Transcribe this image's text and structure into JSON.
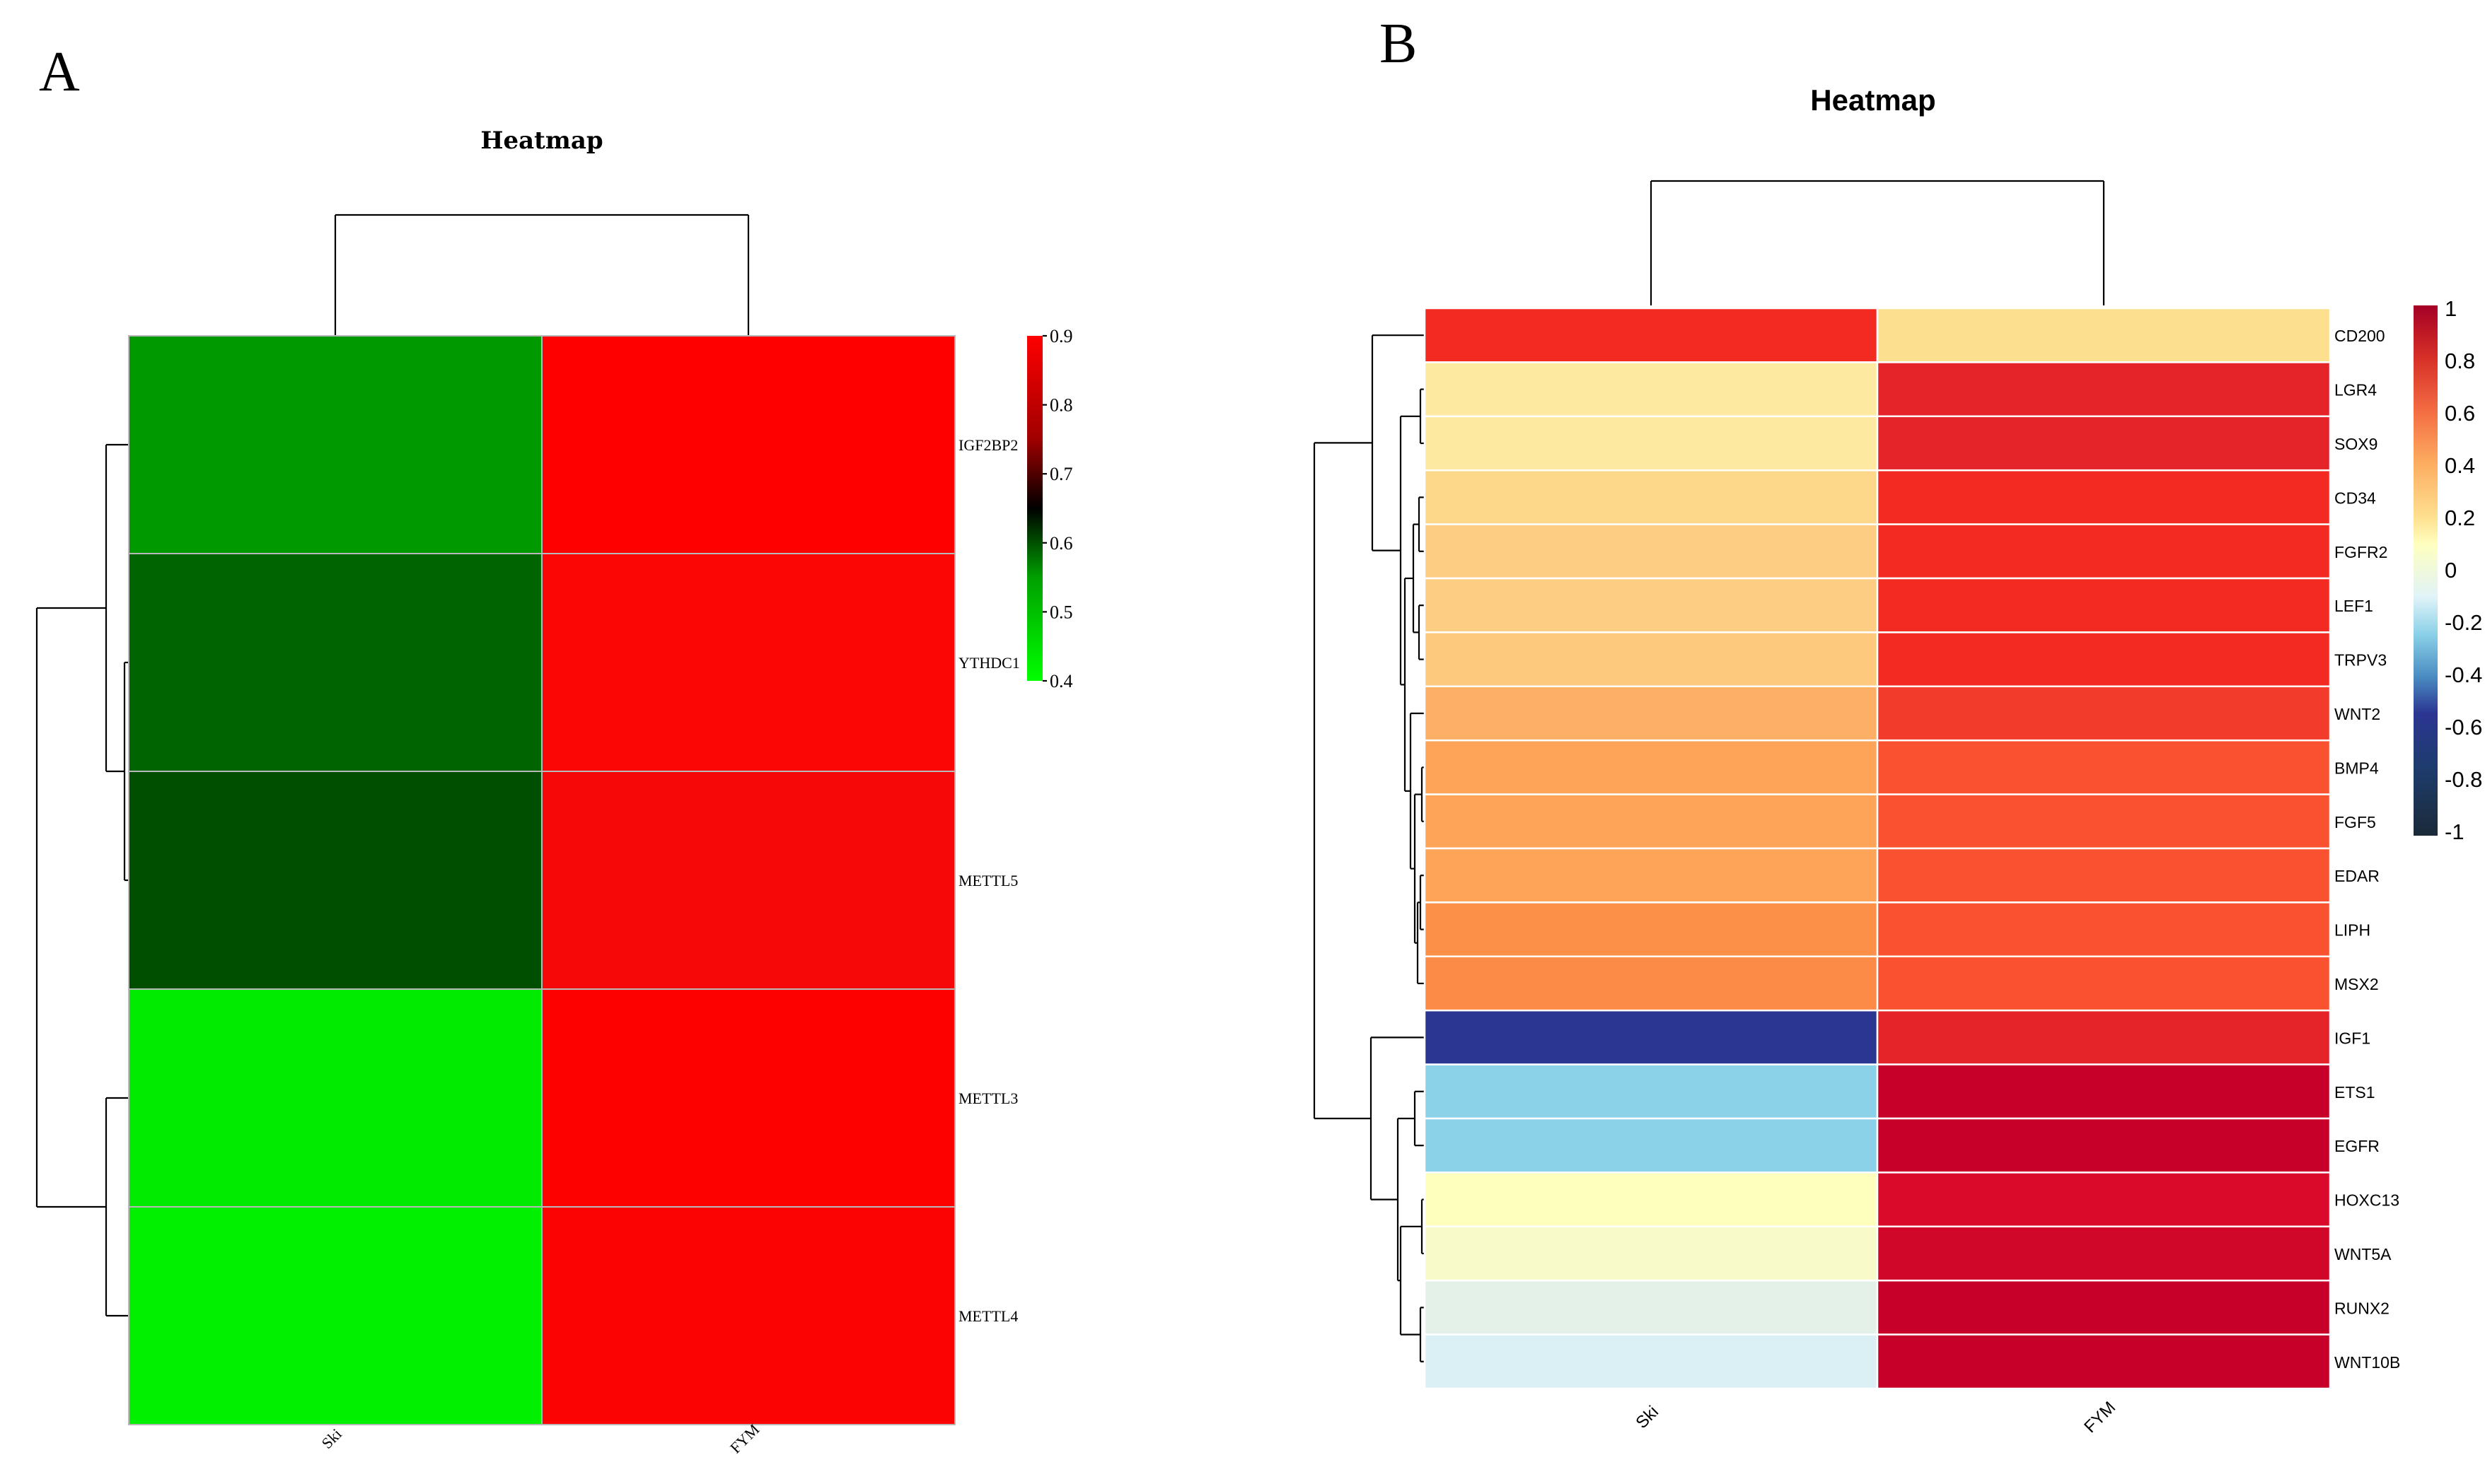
{
  "panels": {
    "a": {
      "letter": "A"
    },
    "b": {
      "letter": "B"
    }
  },
  "chart_data": [
    {
      "type": "heatmap",
      "title": "Heatmap",
      "columns": [
        "Ski",
        "FYM"
      ],
      "rows": [
        "IGF2BP2",
        "YTHDC1",
        "METTL5",
        "METTL3",
        "METTL4"
      ],
      "values": [
        [
          0.6,
          0.895
        ],
        [
          0.62,
          0.89
        ],
        [
          0.64,
          0.885
        ],
        [
          0.41,
          0.89
        ],
        [
          0.4,
          0.892
        ]
      ],
      "color_scale": {
        "min": 0.4,
        "max": 0.9,
        "stops": [
          {
            "v": 0.4,
            "c": "#00ff00"
          },
          {
            "v": 0.6,
            "c": "#00a000"
          },
          {
            "v": 0.65,
            "c": "#000000"
          },
          {
            "v": 0.7,
            "c": "#400000"
          },
          {
            "v": 0.8,
            "c": "#c00000"
          },
          {
            "v": 0.9,
            "c": "#ff0000"
          }
        ],
        "ticks": [
          "0.9",
          "0.8",
          "0.7",
          "0.6",
          "0.5",
          "0.4"
        ]
      },
      "cell_colors": [
        [
          "#009900",
          "#ff0000"
        ],
        [
          "#006400",
          "#fb0505"
        ],
        [
          "#004f00",
          "#f70808"
        ],
        [
          "#00eb00",
          "#fd0000"
        ],
        [
          "#00f000",
          "#fb0303"
        ]
      ],
      "legend_position": "right",
      "column_dendrogram": true,
      "row_dendrogram": true
    },
    {
      "type": "heatmap",
      "title": "Heatmap",
      "columns": [
        "Ski",
        "FYM"
      ],
      "rows": [
        "CD200",
        "LGR4",
        "SOX9",
        "CD34",
        "FGFR2",
        "LEF1",
        "TRPV3",
        "WNT2",
        "BMP4",
        "FGF5",
        "EDAR",
        "LIPH",
        "MSX2",
        "IGF1",
        "ETS1",
        "EGFR",
        "HOXC13",
        "WNT5A",
        "RUNX2",
        "WNT10B"
      ],
      "values": [
        [
          0.88,
          0.42
        ],
        [
          0.4,
          0.92
        ],
        [
          0.41,
          0.92
        ],
        [
          0.45,
          0.9
        ],
        [
          0.48,
          0.89
        ],
        [
          0.49,
          0.9
        ],
        [
          0.5,
          0.89
        ],
        [
          0.56,
          0.87
        ],
        [
          0.6,
          0.84
        ],
        [
          0.6,
          0.84
        ],
        [
          0.62,
          0.82
        ],
        [
          0.64,
          0.81
        ],
        [
          0.66,
          0.81
        ],
        [
          -0.35,
          0.92
        ],
        [
          0.0,
          0.99
        ],
        [
          0.0,
          0.99
        ],
        [
          0.32,
          0.96
        ],
        [
          0.34,
          0.96
        ],
        [
          0.25,
          0.99
        ],
        [
          0.22,
          0.99
        ]
      ],
      "color_scale": {
        "min": -1,
        "max": 1,
        "ticks": [
          "1",
          "0.8",
          "0.6",
          "0.4",
          "0.2",
          "0",
          "-0.2",
          "-0.4",
          "-0.6",
          "-0.8",
          "-1"
        ]
      },
      "cell_colors": [
        [
          "#f32a22",
          "#fddf90"
        ],
        [
          "#fde9a0",
          "#e42428"
        ],
        [
          "#fde9a0",
          "#e42428"
        ],
        [
          "#fdd78a",
          "#f32a22"
        ],
        [
          "#fdcd84",
          "#f32a22"
        ],
        [
          "#fdcd84",
          "#f32a22"
        ],
        [
          "#fdc97c",
          "#f32a22"
        ],
        [
          "#fdb065",
          "#f33b2c"
        ],
        [
          "#fda459",
          "#fa5131"
        ],
        [
          "#fda459",
          "#fa5131"
        ],
        [
          "#fda459",
          "#fa5131"
        ],
        [
          "#fd9048",
          "#fa5131"
        ],
        [
          "#fd8b48",
          "#fa5131"
        ],
        [
          "#2b3592",
          "#e42428"
        ],
        [
          "#8bd1e8",
          "#c60028"
        ],
        [
          "#8bd1e8",
          "#c60028"
        ],
        [
          "#fefebd",
          "#da0b2a"
        ],
        [
          "#f8fbc9",
          "#d00728"
        ],
        [
          "#e3f1e8",
          "#c60028"
        ],
        [
          "#daf0f5",
          "#c60028"
        ]
      ],
      "legend_position": "right",
      "column_dendrogram": true,
      "row_dendrogram": true
    }
  ],
  "colors": {
    "legend_b_stops": [
      "#a50026",
      "#d73027",
      "#f46d43",
      "#fdae61",
      "#fee090",
      "#ffffbf",
      "#e0f3f8",
      "#8bd1e8",
      "#4a8cc2",
      "#2b3592",
      "#1e3c6e",
      "#1a2a38"
    ]
  }
}
